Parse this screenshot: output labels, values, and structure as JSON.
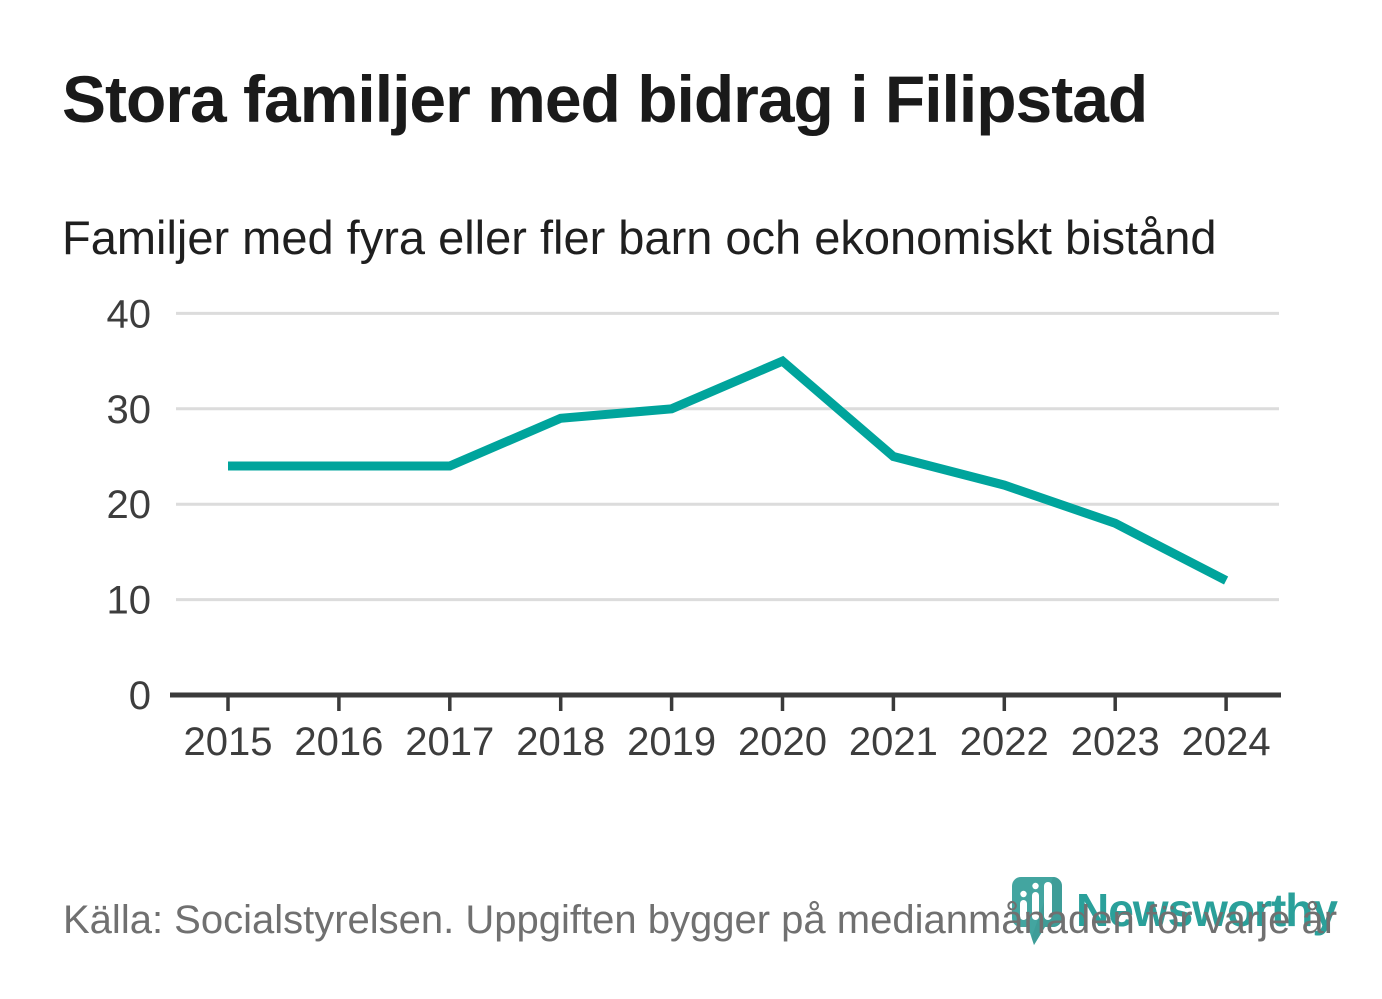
{
  "header": {
    "title": "Stora familjer med bidrag i Filipstad",
    "subtitle": "Familjer med fyra eller fler barn och ekonomiskt bistånd"
  },
  "chart_data": {
    "type": "line",
    "categories": [
      "2015",
      "2016",
      "2017",
      "2018",
      "2019",
      "2020",
      "2021",
      "2022",
      "2023",
      "2024"
    ],
    "values": [
      24,
      24,
      24,
      29,
      30,
      35,
      25,
      22,
      18,
      12
    ],
    "series": [
      {
        "name": "Familjer med fyra eller fler barn och ekonomiskt bistånd",
        "values": [
          24,
          24,
          24,
          29,
          30,
          35,
          25,
          22,
          18,
          12
        ]
      }
    ],
    "title": "Stora familjer med bidrag i Filipstad",
    "xlabel": "",
    "ylabel": "",
    "ylim": [
      0,
      40
    ],
    "yticks": [
      0,
      10,
      20,
      30,
      40
    ],
    "grid": true,
    "legend": "none",
    "line_color": "#00a49c"
  },
  "footer": {
    "source": "Källa: Socialstyrelsen. Uppgiften bygger på medianmånaden för varje år",
    "brand": "Newsworthy"
  },
  "colors": {
    "line": "#00a49c",
    "brand_teal": "#2aa09a",
    "icon_teal": "#43a5a0",
    "icon_teal_dark": "#3a9792",
    "title_text": "#1a1a1a",
    "axis_text": "#3d3d3d",
    "grid": "#dcdcdc",
    "axis": "#3a3a3a",
    "source_text": "#707070"
  }
}
